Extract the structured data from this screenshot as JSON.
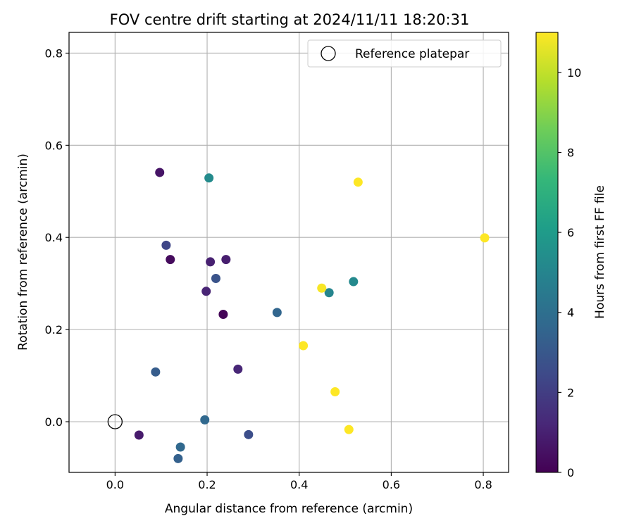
{
  "chart_data": {
    "type": "scatter",
    "title": "FOV centre drift starting at 2024/11/11 18:20:31",
    "xlabel": "Angular distance from reference (arcmin)",
    "ylabel": "Rotation from reference (arcmin)",
    "xlim": [
      -0.1,
      0.855
    ],
    "ylim": [
      -0.11,
      0.845
    ],
    "xticks": [
      0.0,
      0.2,
      0.4,
      0.6,
      0.8
    ],
    "xtick_labels": [
      "0.0",
      "0.2",
      "0.4",
      "0.6",
      "0.8"
    ],
    "yticks": [
      0.0,
      0.2,
      0.4,
      0.6,
      0.8
    ],
    "ytick_labels": [
      "0.0",
      "0.2",
      "0.4",
      "0.6",
      "0.8"
    ],
    "grid": true,
    "legend": {
      "placement": "top-right",
      "entries": [
        "Reference platepar"
      ]
    },
    "reference_point": {
      "name": "Reference platepar",
      "x": 0.0,
      "y": 0.0
    },
    "colorbar": {
      "label": "Hours from first FF file",
      "colormap": "viridis",
      "range": [
        0,
        11
      ],
      "ticks": [
        0,
        2,
        4,
        6,
        8,
        10
      ],
      "tick_labels": [
        "0",
        "2",
        "4",
        "6",
        "8",
        "10"
      ]
    },
    "points": [
      {
        "x": 0.235,
        "y": 0.233,
        "hours": 0.1
      },
      {
        "x": 0.12,
        "y": 0.352,
        "hours": 0.3
      },
      {
        "x": 0.097,
        "y": 0.541,
        "hours": 0.6
      },
      {
        "x": 0.052,
        "y": -0.029,
        "hours": 0.8
      },
      {
        "x": 0.241,
        "y": 0.352,
        "hours": 0.9
      },
      {
        "x": 0.207,
        "y": 0.347,
        "hours": 1.0
      },
      {
        "x": 0.198,
        "y": 0.283,
        "hours": 1.1
      },
      {
        "x": 0.267,
        "y": 0.114,
        "hours": 1.2
      },
      {
        "x": 0.111,
        "y": 0.383,
        "hours": 2.3
      },
      {
        "x": 0.29,
        "y": -0.028,
        "hours": 2.6
      },
      {
        "x": 0.219,
        "y": 0.311,
        "hours": 2.8
      },
      {
        "x": 0.088,
        "y": 0.108,
        "hours": 3.2
      },
      {
        "x": 0.137,
        "y": -0.08,
        "hours": 3.4
      },
      {
        "x": 0.352,
        "y": 0.237,
        "hours": 3.6
      },
      {
        "x": 0.195,
        "y": 0.004,
        "hours": 3.7
      },
      {
        "x": 0.142,
        "y": -0.055,
        "hours": 3.7
      },
      {
        "x": 0.465,
        "y": 0.28,
        "hours": 5.0
      },
      {
        "x": 0.518,
        "y": 0.304,
        "hours": 5.2
      },
      {
        "x": 0.204,
        "y": 0.529,
        "hours": 5.3
      },
      {
        "x": 0.449,
        "y": 0.29,
        "hours": 10.9
      },
      {
        "x": 0.528,
        "y": 0.52,
        "hours": 11.0
      },
      {
        "x": 0.803,
        "y": 0.399,
        "hours": 11.0
      },
      {
        "x": 0.409,
        "y": 0.165,
        "hours": 11.0
      },
      {
        "x": 0.478,
        "y": 0.065,
        "hours": 11.0
      },
      {
        "x": 0.508,
        "y": -0.017,
        "hours": 11.0
      }
    ]
  }
}
